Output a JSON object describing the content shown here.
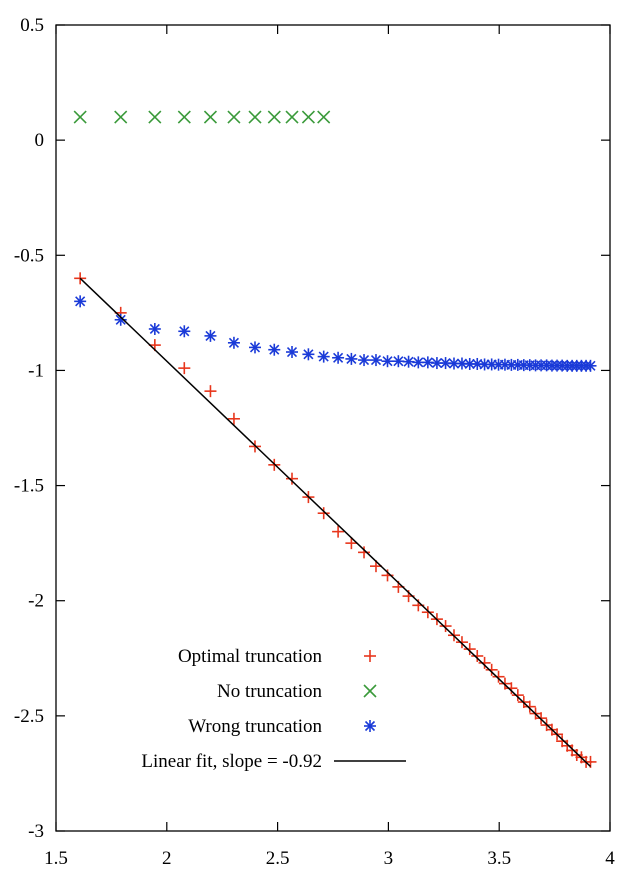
{
  "chart_data": {
    "type": "scatter",
    "title": "",
    "xlabel": "",
    "ylabel": "",
    "xlim": [
      1.5,
      4
    ],
    "ylim": [
      -3,
      0.5
    ],
    "grid": false,
    "legend_position": "bottom-left",
    "x_ticks": [
      {
        "value": 1.5,
        "label": "1.5"
      },
      {
        "value": 2,
        "label": "2"
      },
      {
        "value": 2.5,
        "label": "2.5"
      },
      {
        "value": 3,
        "label": "3"
      },
      {
        "value": 3.5,
        "label": "3.5"
      },
      {
        "value": 4,
        "label": "4"
      }
    ],
    "y_ticks": [
      {
        "value": 0.5,
        "label": "0.5"
      },
      {
        "value": 0,
        "label": "0"
      },
      {
        "value": -0.5,
        "label": "-0.5"
      },
      {
        "value": -1,
        "label": "-1"
      },
      {
        "value": -1.5,
        "label": "-1.5"
      },
      {
        "value": -2,
        "label": "-2"
      },
      {
        "value": -2.5,
        "label": "-2.5"
      },
      {
        "value": -3,
        "label": "-3"
      }
    ],
    "series": [
      {
        "name": "Optimal truncation",
        "marker": "plus",
        "color": "#e8361c",
        "points": [
          [
            1.609,
            -0.6
          ],
          [
            1.792,
            -0.75
          ],
          [
            1.946,
            -0.89
          ],
          [
            2.079,
            -0.99
          ],
          [
            2.197,
            -1.09
          ],
          [
            2.303,
            -1.21
          ],
          [
            2.398,
            -1.33
          ],
          [
            2.485,
            -1.41
          ],
          [
            2.565,
            -1.47
          ],
          [
            2.639,
            -1.55
          ],
          [
            2.708,
            -1.62
          ],
          [
            2.773,
            -1.7
          ],
          [
            2.833,
            -1.75
          ],
          [
            2.89,
            -1.79
          ],
          [
            2.944,
            -1.85
          ],
          [
            2.996,
            -1.89
          ],
          [
            3.045,
            -1.94
          ],
          [
            3.091,
            -1.98
          ],
          [
            3.135,
            -2.02
          ],
          [
            3.178,
            -2.05
          ],
          [
            3.219,
            -2.08
          ],
          [
            3.258,
            -2.11
          ],
          [
            3.296,
            -2.15
          ],
          [
            3.332,
            -2.18
          ],
          [
            3.367,
            -2.21
          ],
          [
            3.401,
            -2.24
          ],
          [
            3.434,
            -2.27
          ],
          [
            3.466,
            -2.3
          ],
          [
            3.497,
            -2.33
          ],
          [
            3.526,
            -2.36
          ],
          [
            3.555,
            -2.38
          ],
          [
            3.584,
            -2.41
          ],
          [
            3.611,
            -2.44
          ],
          [
            3.638,
            -2.46
          ],
          [
            3.664,
            -2.49
          ],
          [
            3.689,
            -2.51
          ],
          [
            3.714,
            -2.54
          ],
          [
            3.738,
            -2.56
          ],
          [
            3.761,
            -2.58
          ],
          [
            3.784,
            -2.61
          ],
          [
            3.807,
            -2.63
          ],
          [
            3.829,
            -2.65
          ],
          [
            3.85,
            -2.67
          ],
          [
            3.871,
            -2.68
          ],
          [
            3.892,
            -2.7
          ],
          [
            3.912,
            -2.7
          ]
        ]
      },
      {
        "name": "No truncation",
        "marker": "cross",
        "color": "#3a9a3a",
        "points": [
          [
            1.609,
            0.1
          ],
          [
            1.792,
            0.1
          ],
          [
            1.946,
            0.1
          ],
          [
            2.079,
            0.1
          ],
          [
            2.197,
            0.1
          ],
          [
            2.303,
            0.1
          ],
          [
            2.398,
            0.1
          ],
          [
            2.485,
            0.1
          ],
          [
            2.565,
            0.1
          ],
          [
            2.639,
            0.1
          ],
          [
            2.708,
            0.1
          ]
        ]
      },
      {
        "name": "Wrong truncation",
        "marker": "asterisk",
        "color": "#1a3ad8",
        "points": [
          [
            1.609,
            -0.7
          ],
          [
            1.792,
            -0.78
          ],
          [
            1.946,
            -0.82
          ],
          [
            2.079,
            -0.83
          ],
          [
            2.197,
            -0.85
          ],
          [
            2.303,
            -0.88
          ],
          [
            2.398,
            -0.9
          ],
          [
            2.485,
            -0.91
          ],
          [
            2.565,
            -0.92
          ],
          [
            2.639,
            -0.93
          ],
          [
            2.708,
            -0.94
          ],
          [
            2.773,
            -0.945
          ],
          [
            2.833,
            -0.95
          ],
          [
            2.89,
            -0.955
          ],
          [
            2.944,
            -0.955
          ],
          [
            2.996,
            -0.96
          ],
          [
            3.045,
            -0.96
          ],
          [
            3.091,
            -0.962
          ],
          [
            3.135,
            -0.965
          ],
          [
            3.178,
            -0.965
          ],
          [
            3.219,
            -0.968
          ],
          [
            3.258,
            -0.968
          ],
          [
            3.296,
            -0.97
          ],
          [
            3.332,
            -0.97
          ],
          [
            3.367,
            -0.972
          ],
          [
            3.401,
            -0.972
          ],
          [
            3.434,
            -0.974
          ],
          [
            3.466,
            -0.974
          ],
          [
            3.497,
            -0.975
          ],
          [
            3.526,
            -0.975
          ],
          [
            3.555,
            -0.976
          ],
          [
            3.584,
            -0.976
          ],
          [
            3.611,
            -0.977
          ],
          [
            3.638,
            -0.977
          ],
          [
            3.664,
            -0.978
          ],
          [
            3.689,
            -0.978
          ],
          [
            3.714,
            -0.978
          ],
          [
            3.738,
            -0.979
          ],
          [
            3.761,
            -0.979
          ],
          [
            3.784,
            -0.979
          ],
          [
            3.807,
            -0.98
          ],
          [
            3.829,
            -0.98
          ],
          [
            3.85,
            -0.98
          ],
          [
            3.871,
            -0.98
          ],
          [
            3.892,
            -0.98
          ],
          [
            3.912,
            -0.98
          ]
        ]
      },
      {
        "name": "Linear fit, slope = -0.92",
        "marker": "line",
        "color": "#000000",
        "points": [
          [
            1.609,
            -0.6
          ],
          [
            3.912,
            -2.72
          ]
        ]
      }
    ]
  }
}
